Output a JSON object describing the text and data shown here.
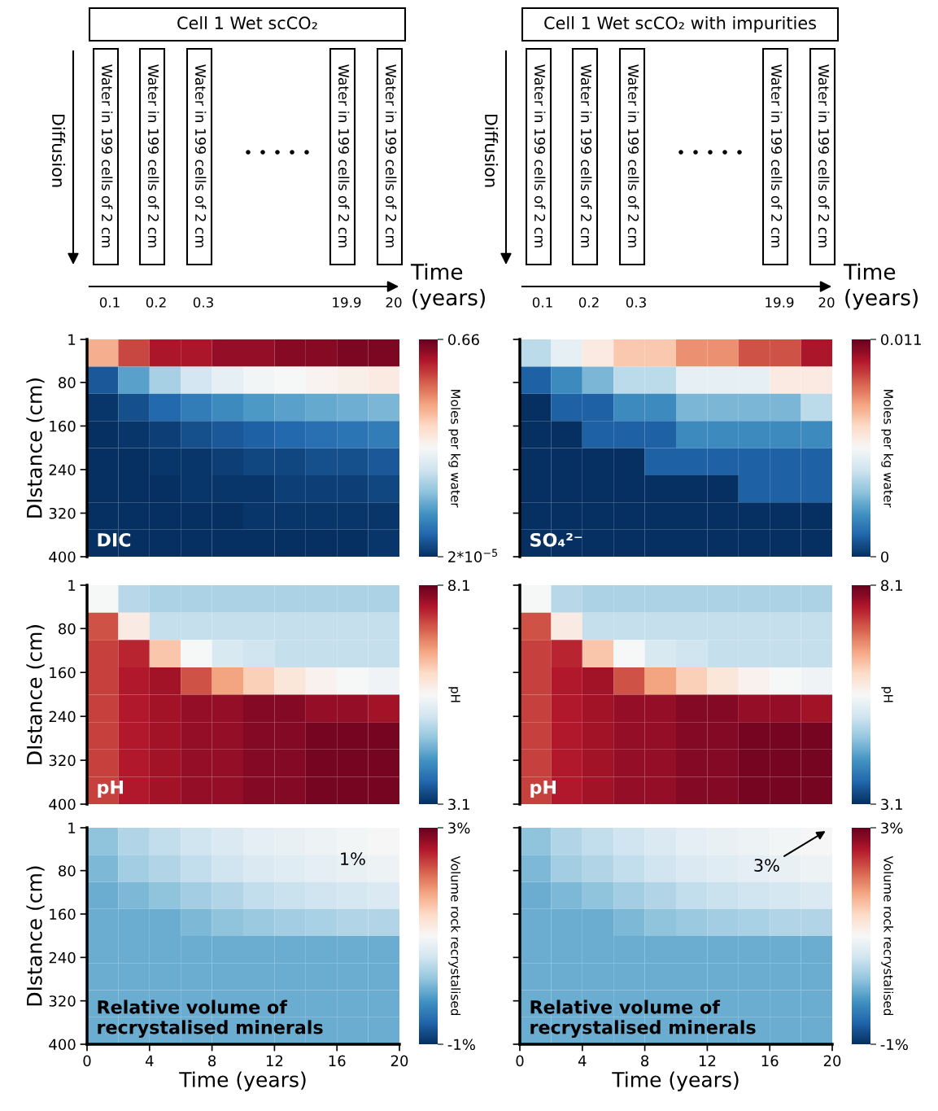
{
  "chart_data": [
    {
      "type": "other",
      "title": "Cell 1 Wet scCO₂",
      "ylabel": "Diffusion",
      "xlabel": "Time\n(years)",
      "categories": [
        "0.1",
        "0.2",
        "0.3",
        "19.9",
        "20"
      ],
      "annotations": [
        "Water in 199 cells of 2 cm",
        "Water in 199 cells of 2 cm",
        "Water in 199 cells of 2 cm",
        "Water in 199 cells of 2 cm",
        "Water in 199 cells of 2 cm"
      ]
    },
    {
      "type": "other",
      "title": "Cell 1 Wet scCO₂ with impurities",
      "ylabel": "Diffusion",
      "xlabel": "Time\n(years)",
      "categories": [
        "0.1",
        "0.2",
        "0.3",
        "19.9",
        "20"
      ],
      "annotations": [
        "Water in 199 cells of 2 cm",
        "Water in 199 cells of 2 cm",
        "Water in 199 cells of 2 cm",
        "Water in 199 cells of 2 cm",
        "Water in 199 cells of 2 cm"
      ]
    },
    {
      "type": "heatmap",
      "ylabel": "DIstance (cm)",
      "clabel": "Moles per kg water",
      "xlim": [
        0,
        20
      ],
      "ylim": [
        400,
        1
      ],
      "xticks": [
        0,
        4,
        8,
        12,
        16,
        20
      ],
      "yticks": [
        1,
        80,
        160,
        240,
        320,
        400
      ],
      "tick_labels": "y",
      "clim": [
        2e-05,
        0.66
      ],
      "cticks": [
        {
          "value": 2e-05,
          "label": "2*10$^{−5}$"
        },
        0.66
      ],
      "cells": [
        [
          0.45,
          0.55,
          0.6,
          0.6,
          0.62,
          0.62,
          0.63,
          0.63,
          0.64,
          0.64
        ],
        [
          0.05,
          0.15,
          0.22,
          0.27,
          0.3,
          0.32,
          0.33,
          0.34,
          0.35,
          0.36
        ],
        [
          0.01,
          0.04,
          0.07,
          0.1,
          0.12,
          0.14,
          0.15,
          0.16,
          0.17,
          0.18
        ],
        [
          2e-05,
          0.01,
          0.02,
          0.04,
          0.05,
          0.06,
          0.07,
          0.08,
          0.09,
          0.1
        ],
        [
          2e-05,
          2e-05,
          0.01,
          0.01,
          0.02,
          0.03,
          0.03,
          0.04,
          0.04,
          0.05
        ],
        [
          2e-05,
          2e-05,
          2e-05,
          0.01,
          0.01,
          0.01,
          0.02,
          0.02,
          0.02,
          0.03
        ],
        [
          2e-05,
          2e-05,
          2e-05,
          2e-05,
          2e-05,
          0.01,
          0.01,
          0.01,
          0.01,
          0.01
        ],
        [
          2e-05,
          2e-05,
          2e-05,
          2e-05,
          2e-05,
          2e-05,
          2e-05,
          2e-05,
          2e-05,
          0.01
        ]
      ],
      "annotations": [
        "DIC"
      ]
    },
    {
      "type": "heatmap",
      "clabel": "Moles per kg water",
      "xlim": [
        0,
        20
      ],
      "ylim": [
        400,
        1
      ],
      "xticks": [
        0,
        4,
        8,
        12,
        16,
        20
      ],
      "yticks": [
        1,
        80,
        160,
        240,
        320,
        400
      ],
      "tick_labels": false,
      "clim": [
        0,
        0.011
      ],
      "cticks": [
        0,
        0.011
      ],
      "cells": [
        [
          0.004,
          0.005,
          0.006,
          0.007,
          0.007,
          0.008,
          0.008,
          0.009,
          0.009,
          0.01
        ],
        [
          0.001,
          0.002,
          0.003,
          0.004,
          0.004,
          0.005,
          0.005,
          0.005,
          0.006,
          0.006
        ],
        [
          0,
          0.001,
          0.001,
          0.002,
          0.002,
          0.003,
          0.003,
          0.003,
          0.003,
          0.004
        ],
        [
          0,
          0,
          0.001,
          0.001,
          0.001,
          0.002,
          0.002,
          0.002,
          0.002,
          0.002
        ],
        [
          0,
          0,
          0,
          0,
          0.001,
          0.001,
          0.001,
          0.001,
          0.001,
          0.001
        ],
        [
          0,
          0,
          0,
          0,
          0,
          0,
          0,
          0.001,
          0.001,
          0.001
        ],
        [
          0,
          0,
          0,
          0,
          0,
          0,
          0,
          0,
          0,
          0
        ],
        [
          0,
          0,
          0,
          0,
          0,
          0,
          0,
          0,
          0,
          0
        ]
      ],
      "annotations": [
        "SO₄²⁻"
      ]
    },
    {
      "type": "heatmap",
      "ylabel": "DIstance (cm)",
      "clabel": "pH",
      "xlim": [
        0,
        20
      ],
      "ylim": [
        400,
        1
      ],
      "xticks": [
        0,
        4,
        8,
        12,
        16,
        20
      ],
      "yticks": [
        1,
        80,
        160,
        240,
        320,
        400
      ],
      "tick_labels": "y",
      "clim": [
        3.1,
        8.1
      ],
      "cticks": [
        3.1,
        8.1
      ],
      "cells": [
        [
          5.6,
          4.9,
          4.8,
          4.8,
          4.8,
          4.8,
          4.8,
          4.8,
          4.8,
          4.8
        ],
        [
          7.2,
          5.8,
          5.0,
          5.0,
          5.0,
          5.0,
          5.0,
          5.0,
          5.0,
          5.0
        ],
        [
          7.3,
          7.5,
          6.3,
          5.6,
          5.2,
          5.1,
          5.0,
          5.0,
          5.0,
          5.0
        ],
        [
          7.3,
          7.6,
          7.7,
          7.2,
          6.6,
          6.2,
          5.9,
          5.7,
          5.6,
          5.5
        ],
        [
          7.3,
          7.6,
          7.7,
          7.8,
          7.8,
          7.9,
          7.9,
          7.8,
          7.8,
          7.7
        ],
        [
          7.3,
          7.6,
          7.7,
          7.8,
          7.8,
          7.9,
          7.9,
          8.0,
          8.0,
          8.0
        ],
        [
          7.3,
          7.6,
          7.7,
          7.8,
          7.8,
          7.9,
          7.9,
          8.0,
          8.0,
          8.0
        ],
        [
          7.3,
          7.6,
          7.7,
          7.8,
          7.8,
          7.9,
          7.9,
          8.0,
          8.0,
          8.0
        ]
      ],
      "annotations": [
        "pH"
      ]
    },
    {
      "type": "heatmap",
      "clabel": "pH",
      "xlim": [
        0,
        20
      ],
      "ylim": [
        400,
        1
      ],
      "xticks": [
        0,
        4,
        8,
        12,
        16,
        20
      ],
      "yticks": [
        1,
        80,
        160,
        240,
        320,
        400
      ],
      "tick_labels": false,
      "clim": [
        3.1,
        8.1
      ],
      "cticks": [
        3.1,
        8.1
      ],
      "cells": [
        [
          5.6,
          4.9,
          4.8,
          4.8,
          4.8,
          4.8,
          4.8,
          4.8,
          4.8,
          4.8
        ],
        [
          7.2,
          5.8,
          5.0,
          5.0,
          5.0,
          5.0,
          5.0,
          5.0,
          5.0,
          5.0
        ],
        [
          7.3,
          7.5,
          6.3,
          5.6,
          5.2,
          5.1,
          5.0,
          5.0,
          5.0,
          5.0
        ],
        [
          7.3,
          7.6,
          7.7,
          7.2,
          6.6,
          6.2,
          5.9,
          5.7,
          5.6,
          5.5
        ],
        [
          7.3,
          7.6,
          7.7,
          7.8,
          7.8,
          7.9,
          7.9,
          7.8,
          7.8,
          7.7
        ],
        [
          7.3,
          7.6,
          7.7,
          7.8,
          7.8,
          7.9,
          7.9,
          8.0,
          8.0,
          8.0
        ],
        [
          7.3,
          7.6,
          7.7,
          7.8,
          7.8,
          7.9,
          7.9,
          8.0,
          8.0,
          8.0
        ],
        [
          7.3,
          7.6,
          7.7,
          7.8,
          7.8,
          7.9,
          7.9,
          8.0,
          8.0,
          8.0
        ]
      ],
      "annotations": [
        "pH"
      ]
    },
    {
      "type": "heatmap",
      "ylabel": "DIstance (cm)",
      "xlabel": "Time (years)",
      "clabel": "Volume rock recrystalised",
      "xlim": [
        0,
        20
      ],
      "ylim": [
        400,
        1
      ],
      "xticks": [
        0,
        4,
        8,
        12,
        16,
        20
      ],
      "yticks": [
        1,
        80,
        160,
        240,
        320,
        400
      ],
      "clim": [
        -1,
        3
      ],
      "cticks": [
        {
          "value": -1,
          "label": "-1%"
        },
        {
          "value": 3,
          "label": "3%"
        }
      ],
      "cells": [
        [
          0.2,
          0.4,
          0.5,
          0.6,
          0.7,
          0.8,
          0.85,
          0.9,
          0.95,
          1.0
        ],
        [
          0.1,
          0.3,
          0.4,
          0.5,
          0.6,
          0.7,
          0.75,
          0.8,
          0.85,
          0.9
        ],
        [
          0,
          0.1,
          0.2,
          0.3,
          0.4,
          0.5,
          0.55,
          0.6,
          0.65,
          0.7
        ],
        [
          0,
          0,
          0,
          0.1,
          0.2,
          0.25,
          0.3,
          0.35,
          0.4,
          0.4
        ],
        [
          0,
          0,
          0,
          0,
          0,
          0,
          0,
          0,
          0,
          0
        ],
        [
          0,
          0,
          0,
          0,
          0,
          0,
          0,
          0,
          0,
          0
        ],
        [
          0,
          0,
          0,
          0,
          0,
          0,
          0,
          0,
          0,
          0
        ],
        [
          0,
          0,
          0,
          0,
          0,
          0,
          0,
          0,
          0,
          0
        ]
      ],
      "annotations": [
        "Relative volume of\nrecrystalised minerals",
        "1%"
      ]
    },
    {
      "type": "heatmap",
      "xlabel": "Time (years)",
      "clabel": "Volume rock recrystalised",
      "xlim": [
        0,
        20
      ],
      "ylim": [
        400,
        1
      ],
      "xticks": [
        0,
        4,
        8,
        12,
        16,
        20
      ],
      "yticks": [
        1,
        80,
        160,
        240,
        320,
        400
      ],
      "tick_labels": "x",
      "clim": [
        -1,
        3
      ],
      "cticks": [
        {
          "value": -1,
          "label": "-1%"
        },
        {
          "value": 3,
          "label": "3%"
        }
      ],
      "cells": [
        [
          0.2,
          0.4,
          0.5,
          0.6,
          0.7,
          0.8,
          0.85,
          0.9,
          0.95,
          1.0
        ],
        [
          0.1,
          0.3,
          0.4,
          0.5,
          0.6,
          0.7,
          0.75,
          0.8,
          0.85,
          0.9
        ],
        [
          0,
          0.1,
          0.2,
          0.3,
          0.4,
          0.5,
          0.55,
          0.6,
          0.65,
          0.7
        ],
        [
          0,
          0,
          0,
          0.1,
          0.2,
          0.25,
          0.3,
          0.35,
          0.4,
          0.4
        ],
        [
          0,
          0,
          0,
          0,
          0,
          0,
          0,
          0,
          0,
          0
        ],
        [
          0,
          0,
          0,
          0,
          0,
          0,
          0,
          0,
          0,
          0
        ],
        [
          0,
          0,
          0,
          0,
          0,
          0,
          0,
          0,
          0,
          0
        ],
        [
          0,
          0,
          0,
          0,
          0,
          0,
          0,
          0,
          0,
          0
        ]
      ],
      "annotations": [
        "Relative volume of\nrecrystalised minerals",
        "3%"
      ]
    }
  ]
}
